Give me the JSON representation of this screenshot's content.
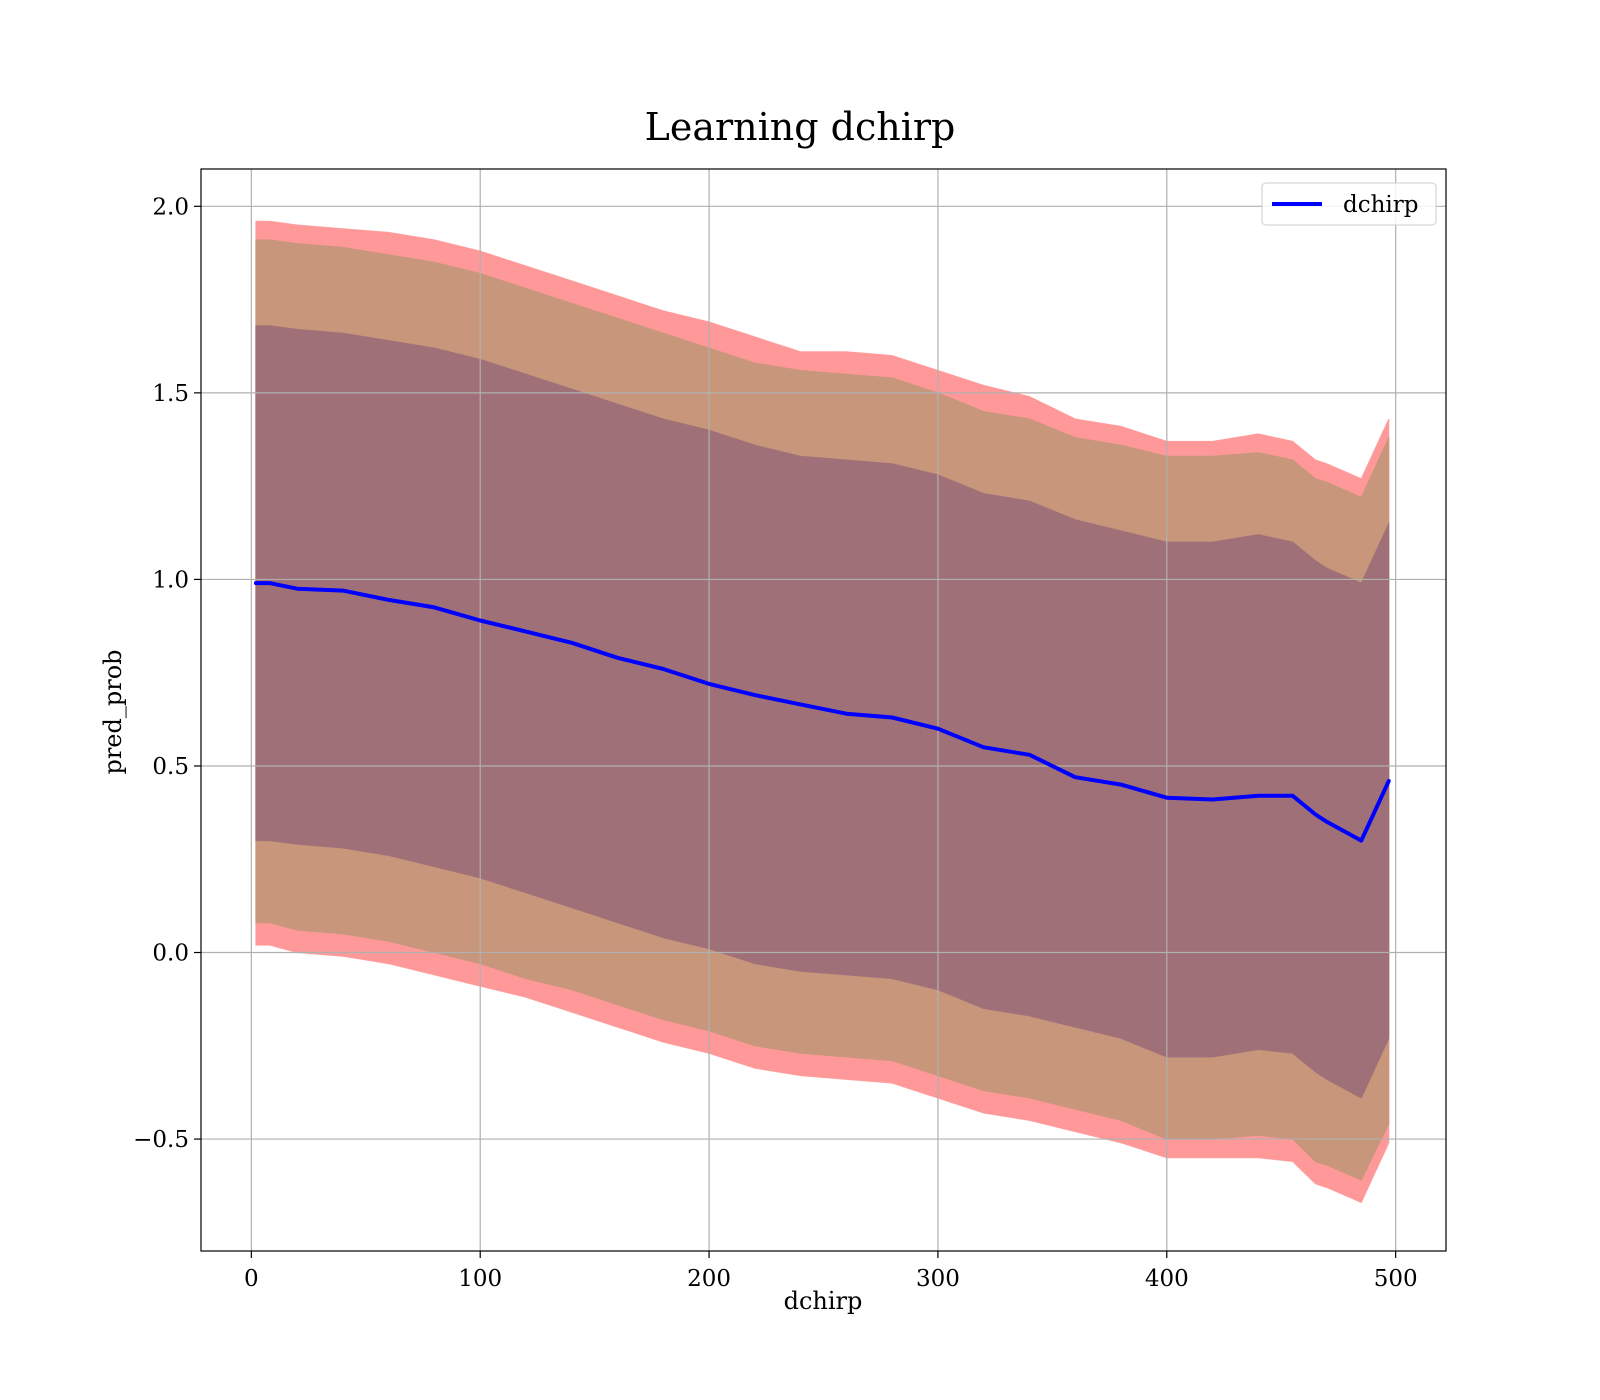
{
  "chart_data": {
    "type": "line",
    "title": "Learning dchirp",
    "xlabel": "dchirp",
    "ylabel": "pred_prob",
    "xlim": [
      -22,
      522
    ],
    "ylim": [
      -0.8,
      2.1
    ],
    "xticks": [
      0,
      100,
      200,
      300,
      400,
      500
    ],
    "yticks": [
      -0.5,
      0.0,
      0.5,
      1.0,
      1.5,
      2.0
    ],
    "xtick_labels": [
      "0",
      "100",
      "200",
      "300",
      "400",
      "500"
    ],
    "ytick_labels": [
      "−0.5",
      "0.0",
      "0.5",
      "1.0",
      "1.5",
      "2.0"
    ],
    "grid": true,
    "legend_position": "top-right",
    "colors": {
      "line": "#0000ff",
      "band_outer": "#ff9999",
      "band_middle": "#c8967a",
      "band_inner": "#a07078",
      "grid": "#b0b0b0"
    },
    "series": [
      {
        "name": "dchirp",
        "style": "line",
        "x": [
          2,
          8,
          20,
          40,
          60,
          80,
          100,
          120,
          140,
          160,
          180,
          200,
          220,
          240,
          260,
          280,
          300,
          320,
          340,
          360,
          380,
          400,
          420,
          440,
          455,
          465,
          470,
          485,
          497
        ],
        "y": [
          0.99,
          0.99,
          0.975,
          0.97,
          0.945,
          0.925,
          0.89,
          0.86,
          0.83,
          0.79,
          0.76,
          0.72,
          0.69,
          0.665,
          0.64,
          0.63,
          0.6,
          0.55,
          0.53,
          0.47,
          0.45,
          0.415,
          0.41,
          0.42,
          0.42,
          0.37,
          0.35,
          0.3,
          0.46
        ]
      }
    ],
    "bands": [
      {
        "level": "outer",
        "x": [
          2,
          8,
          20,
          40,
          60,
          80,
          100,
          120,
          140,
          160,
          180,
          200,
          220,
          240,
          260,
          280,
          300,
          320,
          340,
          360,
          380,
          400,
          420,
          440,
          455,
          465,
          470,
          485,
          497
        ],
        "upper": [
          1.96,
          1.96,
          1.95,
          1.94,
          1.93,
          1.91,
          1.88,
          1.84,
          1.8,
          1.76,
          1.72,
          1.69,
          1.65,
          1.61,
          1.61,
          1.6,
          1.56,
          1.52,
          1.49,
          1.43,
          1.41,
          1.37,
          1.37,
          1.39,
          1.37,
          1.32,
          1.31,
          1.27,
          1.43
        ],
        "lower": [
          0.02,
          0.02,
          0.0,
          -0.01,
          -0.03,
          -0.06,
          -0.09,
          -0.12,
          -0.16,
          -0.2,
          -0.24,
          -0.27,
          -0.31,
          -0.33,
          -0.34,
          -0.35,
          -0.39,
          -0.43,
          -0.45,
          -0.48,
          -0.51,
          -0.55,
          -0.55,
          -0.55,
          -0.56,
          -0.62,
          -0.63,
          -0.67,
          -0.51
        ]
      },
      {
        "level": "middle",
        "x": [
          2,
          8,
          20,
          40,
          60,
          80,
          100,
          120,
          140,
          160,
          180,
          200,
          220,
          240,
          260,
          280,
          300,
          320,
          340,
          360,
          380,
          400,
          420,
          440,
          455,
          465,
          470,
          485,
          497
        ],
        "upper": [
          1.91,
          1.91,
          1.9,
          1.89,
          1.87,
          1.85,
          1.82,
          1.78,
          1.74,
          1.7,
          1.66,
          1.62,
          1.58,
          1.56,
          1.55,
          1.54,
          1.5,
          1.45,
          1.43,
          1.38,
          1.36,
          1.33,
          1.33,
          1.34,
          1.32,
          1.27,
          1.26,
          1.22,
          1.38
        ],
        "lower": [
          0.08,
          0.08,
          0.06,
          0.05,
          0.03,
          0.0,
          -0.03,
          -0.07,
          -0.1,
          -0.14,
          -0.18,
          -0.21,
          -0.25,
          -0.27,
          -0.28,
          -0.29,
          -0.33,
          -0.37,
          -0.39,
          -0.42,
          -0.45,
          -0.5,
          -0.5,
          -0.49,
          -0.5,
          -0.56,
          -0.57,
          -0.61,
          -0.46
        ]
      },
      {
        "level": "inner",
        "x": [
          2,
          8,
          20,
          40,
          60,
          80,
          100,
          120,
          140,
          160,
          180,
          200,
          220,
          240,
          260,
          280,
          300,
          320,
          340,
          360,
          380,
          400,
          420,
          440,
          455,
          465,
          470,
          485,
          497
        ],
        "upper": [
          1.68,
          1.68,
          1.67,
          1.66,
          1.64,
          1.62,
          1.59,
          1.55,
          1.51,
          1.47,
          1.43,
          1.4,
          1.36,
          1.33,
          1.32,
          1.31,
          1.28,
          1.23,
          1.21,
          1.16,
          1.13,
          1.1,
          1.1,
          1.12,
          1.1,
          1.05,
          1.03,
          0.99,
          1.15
        ],
        "lower": [
          0.3,
          0.3,
          0.29,
          0.28,
          0.26,
          0.23,
          0.2,
          0.16,
          0.12,
          0.08,
          0.04,
          0.01,
          -0.03,
          -0.05,
          -0.06,
          -0.07,
          -0.1,
          -0.15,
          -0.17,
          -0.2,
          -0.23,
          -0.28,
          -0.28,
          -0.26,
          -0.27,
          -0.32,
          -0.34,
          -0.39,
          -0.23
        ]
      }
    ]
  }
}
